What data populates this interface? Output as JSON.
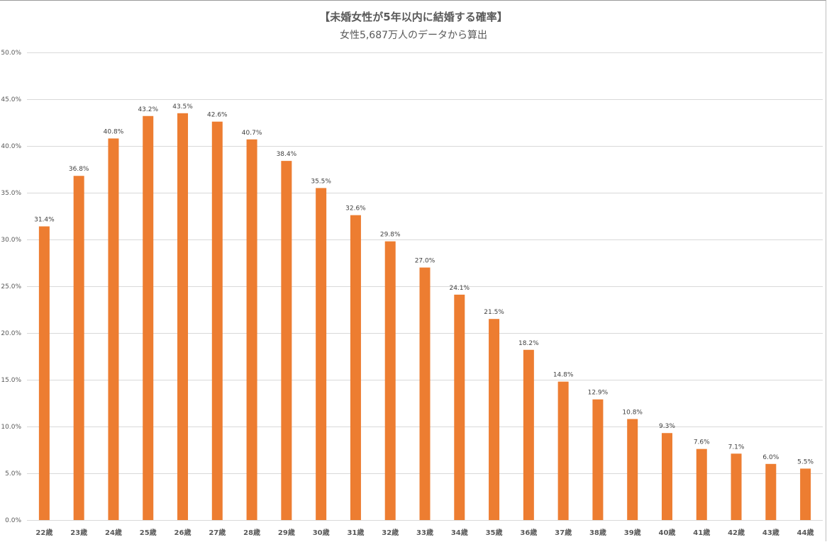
{
  "chart_data": {
    "type": "bar",
    "title": "【未婚女性が5年以内に結婚する確率】",
    "subtitle": "女性5,687万人のデータから算出",
    "xlabel": "",
    "ylabel": "",
    "categories": [
      "22歳",
      "23歳",
      "24歳",
      "25歳",
      "26歳",
      "27歳",
      "28歳",
      "29歳",
      "30歳",
      "31歳",
      "32歳",
      "33歳",
      "34歳",
      "35歳",
      "36歳",
      "37歳",
      "38歳",
      "39歳",
      "40歳",
      "41歳",
      "42歳",
      "43歳",
      "44歳"
    ],
    "values": [
      31.4,
      36.8,
      40.8,
      43.2,
      43.5,
      42.6,
      40.7,
      38.4,
      35.5,
      32.6,
      29.8,
      27.0,
      24.1,
      21.5,
      18.2,
      14.8,
      12.9,
      10.8,
      9.3,
      7.6,
      7.1,
      6.0,
      5.5
    ],
    "data_labels": [
      "31.4%",
      "36.8%",
      "40.8%",
      "43.2%",
      "43.5%",
      "42.6%",
      "40.7%",
      "38.4%",
      "35.5%",
      "32.6%",
      "29.8%",
      "27.0%",
      "24.1%",
      "21.5%",
      "18.2%",
      "14.8%",
      "12.9%",
      "10.8%",
      "9.3%",
      "7.6%",
      "7.1%",
      "6.0%",
      "5.5%"
    ],
    "ylim": [
      0,
      50
    ],
    "yticks": [
      0,
      5,
      10,
      15,
      20,
      25,
      30,
      35,
      40,
      45,
      50
    ],
    "ytick_labels": [
      "0.0%",
      "5.0%",
      "10.0%",
      "15.0%",
      "20.0%",
      "25.0%",
      "30.0%",
      "35.0%",
      "40.0%",
      "45.0%",
      "50.0%"
    ],
    "grid": true,
    "legend": "none",
    "bar_color": "#ED7D31",
    "grid_color": "#D9D9D9",
    "text_color": "#595959"
  }
}
